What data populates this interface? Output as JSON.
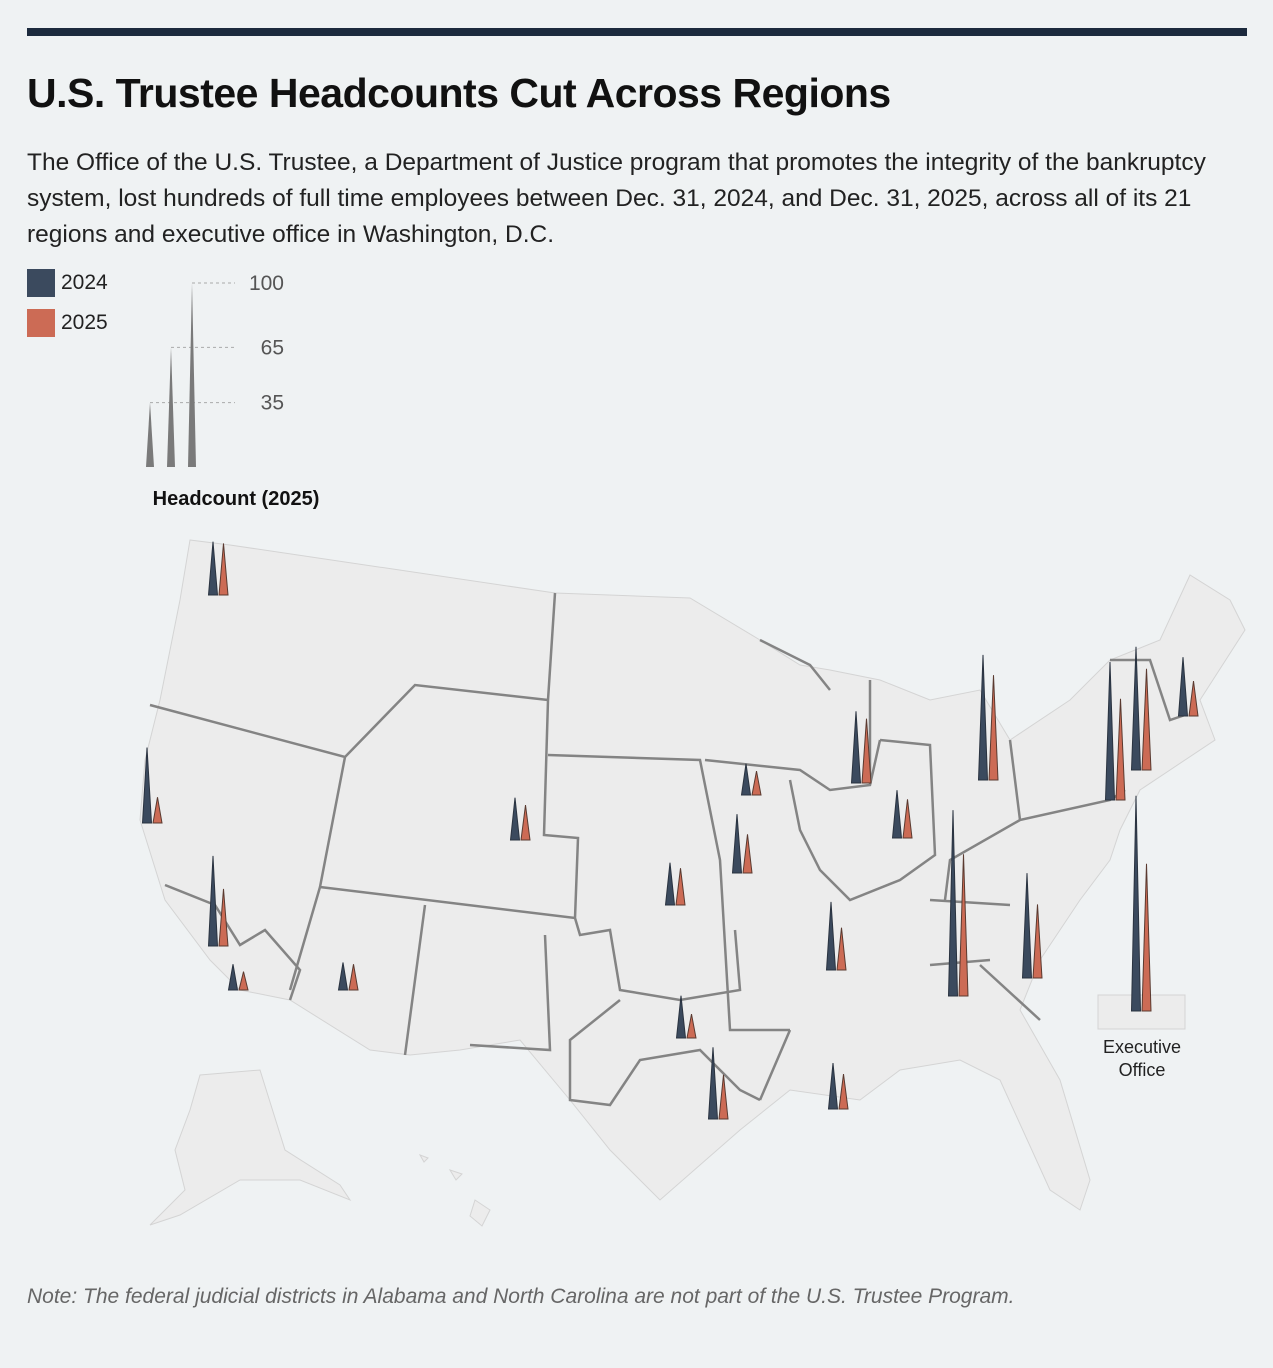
{
  "title": "U.S. Trustee Headcounts Cut Across Regions",
  "subtitle": "The Office of the U.S. Trustee, a Department of Justice program that promotes the integrity of the bankruptcy system, lost hundreds of full time employees between Dec. 31, 2024, and Dec. 31, 2025, across all of its 21 regions and executive office in Washington, D.C.",
  "legend": {
    "series": [
      {
        "label": "2024",
        "color": "#3b4a5e"
      },
      {
        "label": "2025",
        "color": "#cc6b55"
      }
    ],
    "size_title": "Headcount (2025)",
    "size_ticks": [
      "35",
      "65",
      "100"
    ]
  },
  "exec_label": "Executive Office",
  "note": "Note: The federal judicial districts in Alabama and North Carolina are not part of the U.S. Trustee Program.",
  "chart_data": {
    "type": "spike map",
    "series_names": [
      "2024",
      "2025"
    ],
    "size_scale_ticks": [
      35,
      65,
      100
    ],
    "points": [
      {
        "v2024": 29,
        "v2025": 28
      },
      {
        "v2024": 41,
        "v2025": 14
      },
      {
        "v2024": 49,
        "v2025": 31
      },
      {
        "v2024": 14,
        "v2025": 10
      },
      {
        "v2024": 15,
        "v2025": 14
      },
      {
        "v2024": 23,
        "v2025": 19
      },
      {
        "v2024": 23,
        "v2025": 20
      },
      {
        "v2024": 17,
        "v2025": 13
      },
      {
        "v2024": 32,
        "v2025": 21
      },
      {
        "v2024": 39,
        "v2025": 35
      },
      {
        "v2024": 26,
        "v2025": 21
      },
      {
        "v2024": 68,
        "v2025": 57
      },
      {
        "v2024": 101,
        "v2025": 77
      },
      {
        "v2024": 57,
        "v2025": 40
      },
      {
        "v2024": 75,
        "v2025": 55
      },
      {
        "v2024": 67,
        "v2025": 55
      },
      {
        "v2024": 32,
        "v2025": 19
      },
      {
        "v2024": 37,
        "v2025": 23
      },
      {
        "v2024": 23,
        "v2025": 13
      },
      {
        "v2024": 39,
        "v2025": 24
      },
      {
        "v2024": 25,
        "v2025": 19
      },
      {
        "v2024": 117,
        "v2025": 80,
        "label": "Executive Office"
      }
    ]
  }
}
